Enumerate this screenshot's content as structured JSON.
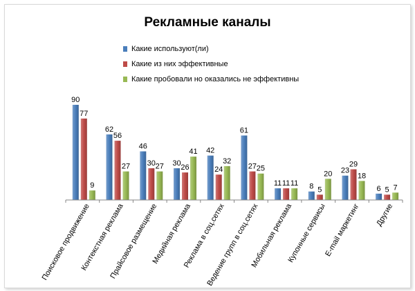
{
  "chart_data": {
    "type": "bar",
    "title": "Рекламные каналы",
    "xlabel": "",
    "ylabel": "",
    "ylim": [
      0,
      90
    ],
    "grid": false,
    "legend_position": "top",
    "categories": [
      "Поисковое продвижение",
      "Контекстная реклама",
      "Прайсовое размещение",
      "Медийная реклама",
      "Реклама в соц.сетях",
      "Ведение групп в соц.сетях",
      "Мобильная реклама",
      "Купонные сервисы",
      "E-mail маркетинг",
      "Другие"
    ],
    "series": [
      {
        "name": "Какие используют(ли)",
        "color": "#4a7ebb",
        "values": [
          90,
          62,
          46,
          30,
          42,
          61,
          11,
          8,
          23,
          6
        ]
      },
      {
        "name": "Какие из них эффективные",
        "color": "#be4b48",
        "values": [
          77,
          56,
          30,
          26,
          24,
          27,
          11,
          5,
          29,
          5
        ]
      },
      {
        "name": "Какие пробовали но оказались не эффективны",
        "color": "#98b954",
        "values": [
          9,
          27,
          27,
          41,
          32,
          25,
          11,
          20,
          18,
          7
        ]
      }
    ]
  }
}
